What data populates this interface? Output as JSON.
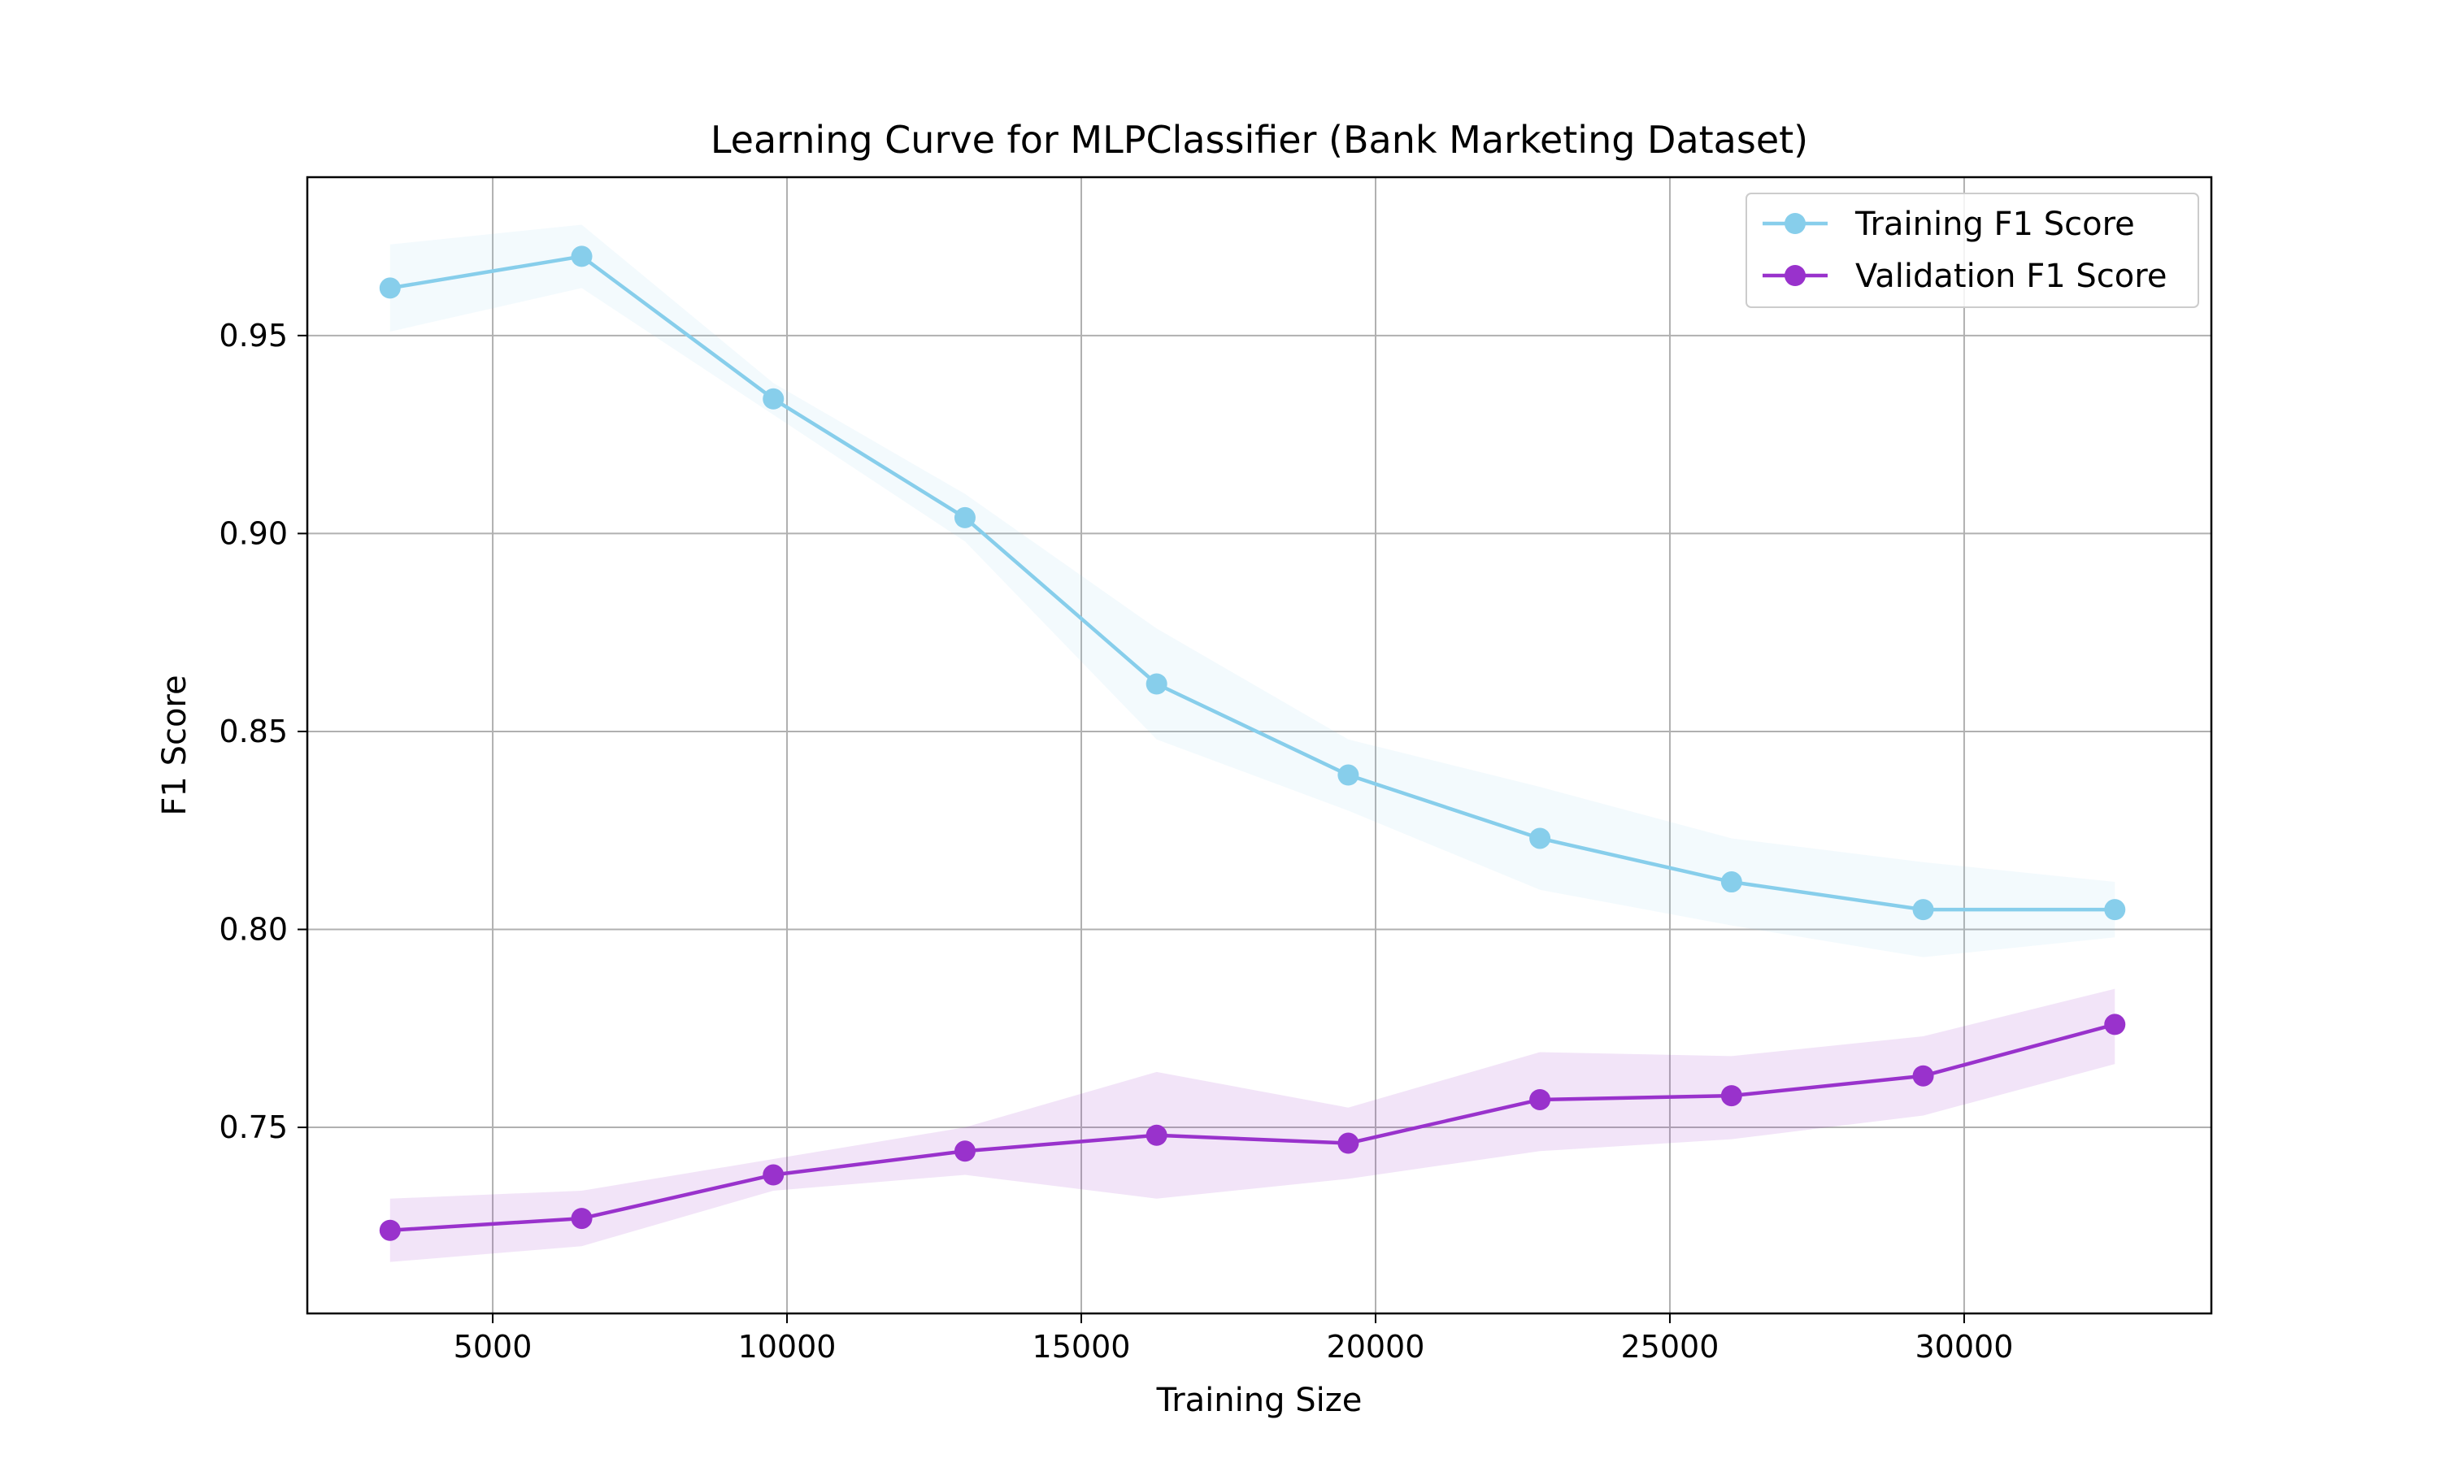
{
  "chart_data": {
    "type": "line",
    "title": "Learning Curve for MLPClassifier (Bank Marketing Dataset)",
    "xlabel": "Training Size",
    "ylabel": "F1 Score",
    "xlim": [
      1850,
      34200
    ],
    "ylim": [
      0.703,
      0.99
    ],
    "xticks": [
      5000,
      10000,
      15000,
      20000,
      25000,
      30000
    ],
    "yticks": [
      0.75,
      0.8,
      0.85,
      0.9,
      0.95
    ],
    "xtick_labels": [
      "5000",
      "10000",
      "15000",
      "20000",
      "25000",
      "30000"
    ],
    "ytick_labels": [
      "0.75",
      "0.80",
      "0.85",
      "0.90",
      "0.95"
    ],
    "grid": true,
    "legend_position": "top-right",
    "x": [
      3256,
      6512,
      9768,
      13024,
      16280,
      19536,
      22792,
      26048,
      29304,
      32560
    ],
    "series": [
      {
        "name": "Training F1 Score",
        "color": "#87CEEB",
        "values": [
          0.962,
          0.97,
          0.934,
          0.904,
          0.862,
          0.839,
          0.823,
          0.812,
          0.805,
          0.805
        ],
        "upper": [
          0.973,
          0.978,
          0.938,
          0.91,
          0.876,
          0.848,
          0.836,
          0.823,
          0.817,
          0.812
        ],
        "lower": [
          0.951,
          0.962,
          0.93,
          0.898,
          0.848,
          0.83,
          0.81,
          0.801,
          0.793,
          0.798
        ]
      },
      {
        "name": "Validation F1 Score",
        "color": "#9932CC",
        "values": [
          0.724,
          0.727,
          0.738,
          0.744,
          0.748,
          0.746,
          0.757,
          0.758,
          0.763,
          0.776
        ],
        "upper": [
          0.732,
          0.734,
          0.742,
          0.75,
          0.764,
          0.755,
          0.769,
          0.768,
          0.773,
          0.785
        ],
        "lower": [
          0.716,
          0.72,
          0.734,
          0.738,
          0.732,
          0.737,
          0.744,
          0.747,
          0.753,
          0.766
        ]
      }
    ]
  }
}
